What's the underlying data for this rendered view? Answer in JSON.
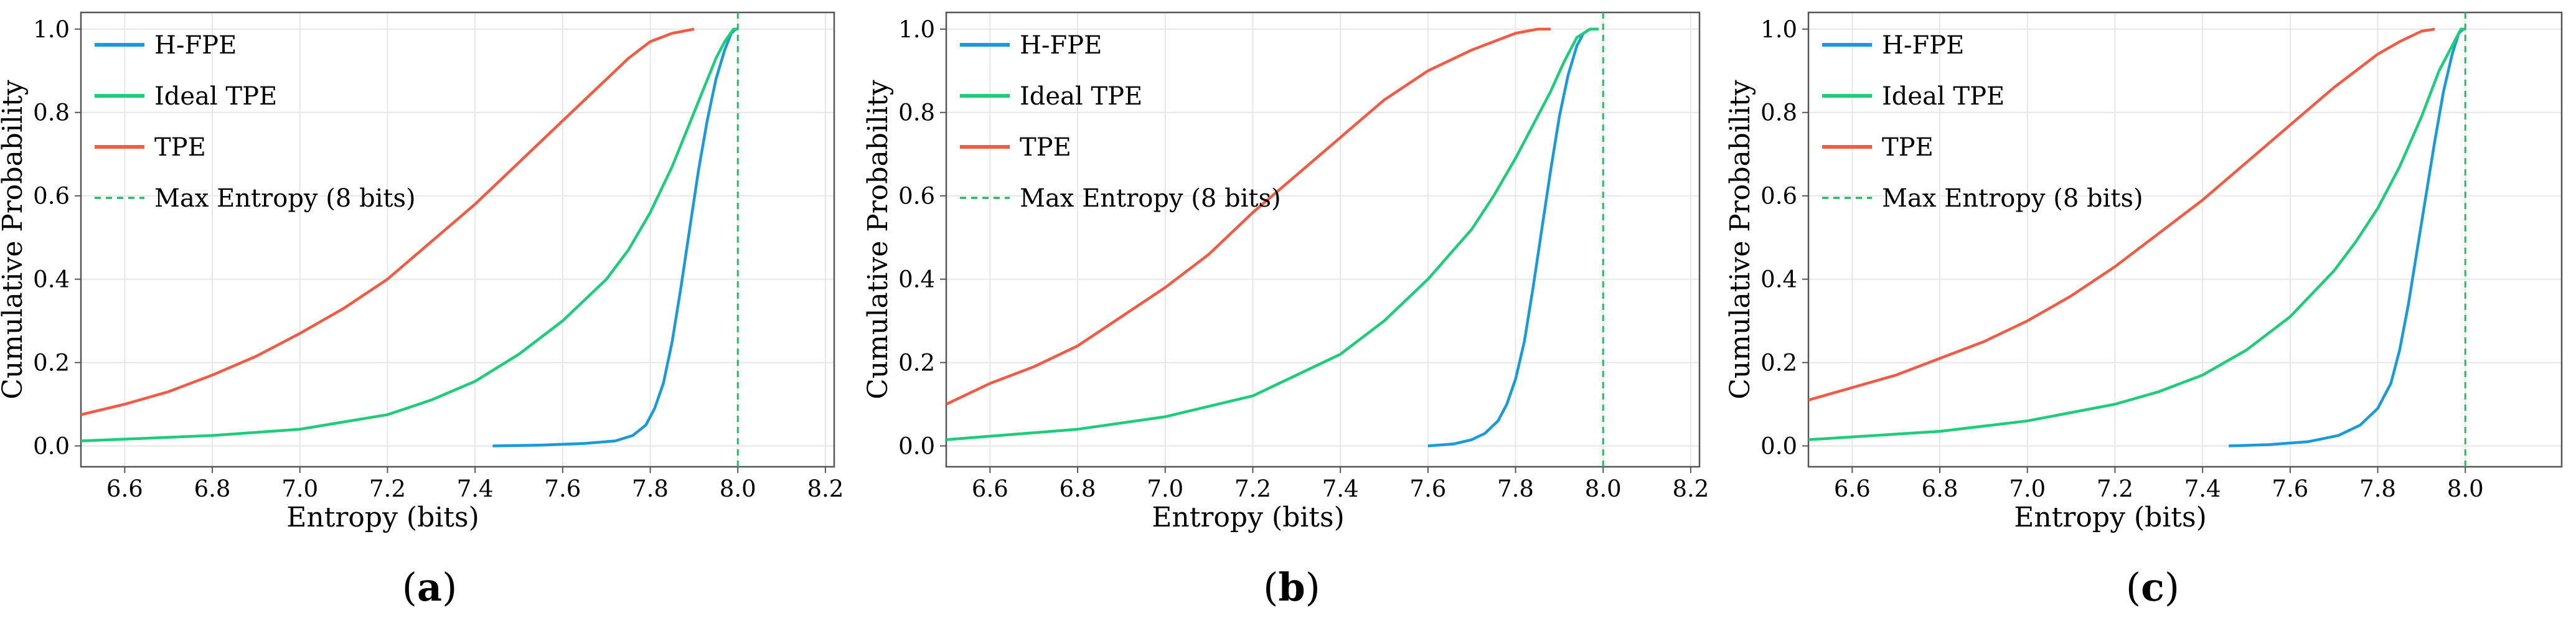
{
  "figure": {
    "subcaptions": [
      {
        "open": "(",
        "letter": "a",
        "close": ")"
      },
      {
        "open": "(",
        "letter": "b",
        "close": ")"
      },
      {
        "open": "(",
        "letter": "c",
        "close": ")"
      }
    ]
  },
  "legend": {
    "entries": [
      "H-FPE",
      "Ideal TPE",
      "TPE",
      "Max Entropy (8 bits)"
    ]
  },
  "colors": {
    "hfpe": "#1a9ad6",
    "ideal": "#1fcc7a",
    "tpe": "#f25c45",
    "maxline": "#2ab866",
    "grid": "#e6e6e6",
    "axis": "#555555"
  },
  "chart_data": [
    {
      "type": "line",
      "title": "",
      "xlabel": "Entropy (bits)",
      "ylabel": "Cumulative Probability",
      "xlim": [
        6.5,
        8.22
      ],
      "ylim": [
        -0.05,
        1.04
      ],
      "xticks": [
        "6.6",
        "6.8",
        "7.0",
        "7.2",
        "7.4",
        "7.6",
        "7.8",
        "8.0",
        "8.2"
      ],
      "yticks": [
        "0.0",
        "0.2",
        "0.4",
        "0.6",
        "0.8",
        "1.0"
      ],
      "grid": true,
      "legend_position": "top-left",
      "max_entropy": 8.0,
      "series": [
        {
          "name": "H-FPE",
          "x": [
            7.44,
            7.55,
            7.65,
            7.72,
            7.76,
            7.79,
            7.81,
            7.83,
            7.85,
            7.87,
            7.89,
            7.91,
            7.93,
            7.95,
            7.97,
            7.985,
            7.995
          ],
          "y": [
            0.0,
            0.002,
            0.006,
            0.012,
            0.025,
            0.05,
            0.09,
            0.15,
            0.25,
            0.38,
            0.52,
            0.66,
            0.78,
            0.88,
            0.95,
            0.99,
            1.0
          ]
        },
        {
          "name": "Ideal TPE",
          "x": [
            6.5,
            6.8,
            7.0,
            7.2,
            7.3,
            7.4,
            7.5,
            7.6,
            7.7,
            7.75,
            7.8,
            7.85,
            7.9,
            7.95,
            7.97,
            7.99,
            8.0
          ],
          "y": [
            0.012,
            0.025,
            0.04,
            0.075,
            0.11,
            0.155,
            0.22,
            0.3,
            0.4,
            0.47,
            0.56,
            0.67,
            0.8,
            0.93,
            0.97,
            1.0,
            1.0
          ]
        },
        {
          "name": "TPE",
          "x": [
            6.5,
            6.6,
            6.7,
            6.8,
            6.9,
            7.0,
            7.1,
            7.2,
            7.3,
            7.4,
            7.5,
            7.6,
            7.7,
            7.75,
            7.8,
            7.85,
            7.9
          ],
          "y": [
            0.075,
            0.1,
            0.13,
            0.17,
            0.215,
            0.27,
            0.33,
            0.4,
            0.49,
            0.58,
            0.68,
            0.78,
            0.88,
            0.93,
            0.97,
            0.99,
            1.0
          ]
        },
        {
          "name": "Max Entropy (8 bits)",
          "x": [
            8.0,
            8.0
          ],
          "y": [
            -0.05,
            1.04
          ]
        }
      ]
    },
    {
      "type": "line",
      "title": "",
      "xlabel": "Entropy (bits)",
      "ylabel": "Cumulative Probability",
      "xlim": [
        6.5,
        8.22
      ],
      "ylim": [
        -0.05,
        1.04
      ],
      "xticks": [
        "6.6",
        "6.8",
        "7.0",
        "7.2",
        "7.4",
        "7.6",
        "7.8",
        "8.0",
        "8.2"
      ],
      "yticks": [
        "0.0",
        "0.2",
        "0.4",
        "0.6",
        "0.8",
        "1.0"
      ],
      "grid": true,
      "legend_position": "top-left",
      "max_entropy": 8.0,
      "series": [
        {
          "name": "H-FPE",
          "x": [
            7.6,
            7.66,
            7.7,
            7.73,
            7.76,
            7.78,
            7.8,
            7.82,
            7.84,
            7.86,
            7.88,
            7.9,
            7.92,
            7.94,
            7.955,
            7.97
          ],
          "y": [
            0.0,
            0.005,
            0.015,
            0.03,
            0.06,
            0.1,
            0.16,
            0.25,
            0.38,
            0.52,
            0.66,
            0.79,
            0.89,
            0.96,
            0.99,
            1.0
          ]
        },
        {
          "name": "Ideal TPE",
          "x": [
            6.5,
            6.8,
            7.0,
            7.2,
            7.3,
            7.4,
            7.5,
            7.6,
            7.7,
            7.75,
            7.8,
            7.85,
            7.88,
            7.91,
            7.94,
            7.97,
            7.99
          ],
          "y": [
            0.015,
            0.04,
            0.07,
            0.12,
            0.17,
            0.22,
            0.3,
            0.4,
            0.52,
            0.6,
            0.69,
            0.79,
            0.85,
            0.92,
            0.98,
            1.0,
            1.0
          ]
        },
        {
          "name": "TPE",
          "x": [
            6.5,
            6.6,
            6.7,
            6.8,
            6.9,
            7.0,
            7.1,
            7.2,
            7.3,
            7.4,
            7.5,
            7.6,
            7.7,
            7.75,
            7.8,
            7.85,
            7.88
          ],
          "y": [
            0.1,
            0.15,
            0.19,
            0.24,
            0.31,
            0.38,
            0.46,
            0.56,
            0.65,
            0.74,
            0.83,
            0.9,
            0.95,
            0.97,
            0.99,
            1.0,
            1.0
          ]
        },
        {
          "name": "Max Entropy (8 bits)",
          "x": [
            8.0,
            8.0
          ],
          "y": [
            -0.05,
            1.04
          ]
        }
      ]
    },
    {
      "type": "line",
      "title": "",
      "xlabel": "Entropy (bits)",
      "ylabel": "Cumulative Probability",
      "xlim": [
        6.5,
        8.22
      ],
      "ylim": [
        -0.05,
        1.04
      ],
      "xticks": [
        "6.6",
        "6.8",
        "7.0",
        "7.2",
        "7.4",
        "7.6",
        "7.8",
        "8.0"
      ],
      "yticks": [
        "0.0",
        "0.2",
        "0.4",
        "0.6",
        "0.8",
        "1.0"
      ],
      "grid": true,
      "legend_position": "top-left",
      "max_entropy": 8.0,
      "series": [
        {
          "name": "H-FPE",
          "x": [
            7.46,
            7.55,
            7.64,
            7.71,
            7.76,
            7.8,
            7.83,
            7.85,
            7.87,
            7.89,
            7.91,
            7.93,
            7.95,
            7.97,
            7.985,
            7.995
          ],
          "y": [
            0.0,
            0.003,
            0.01,
            0.025,
            0.05,
            0.09,
            0.15,
            0.23,
            0.34,
            0.47,
            0.6,
            0.73,
            0.85,
            0.94,
            0.99,
            1.0
          ]
        },
        {
          "name": "Ideal TPE",
          "x": [
            6.5,
            6.8,
            7.0,
            7.2,
            7.3,
            7.4,
            7.5,
            7.6,
            7.7,
            7.75,
            7.8,
            7.85,
            7.9,
            7.94,
            7.97,
            7.99,
            8.0
          ],
          "y": [
            0.015,
            0.035,
            0.06,
            0.1,
            0.13,
            0.17,
            0.23,
            0.31,
            0.42,
            0.49,
            0.57,
            0.67,
            0.79,
            0.9,
            0.96,
            1.0,
            1.0
          ]
        },
        {
          "name": "TPE",
          "x": [
            6.5,
            6.6,
            6.7,
            6.8,
            6.9,
            7.0,
            7.1,
            7.2,
            7.3,
            7.4,
            7.5,
            7.6,
            7.7,
            7.75,
            7.8,
            7.85,
            7.9,
            7.93
          ],
          "y": [
            0.11,
            0.14,
            0.17,
            0.21,
            0.25,
            0.3,
            0.36,
            0.43,
            0.51,
            0.59,
            0.68,
            0.77,
            0.86,
            0.9,
            0.94,
            0.97,
            0.995,
            1.0
          ]
        },
        {
          "name": "Max Entropy (8 bits)",
          "x": [
            8.0,
            8.0
          ],
          "y": [
            -0.05,
            1.04
          ]
        }
      ]
    }
  ]
}
